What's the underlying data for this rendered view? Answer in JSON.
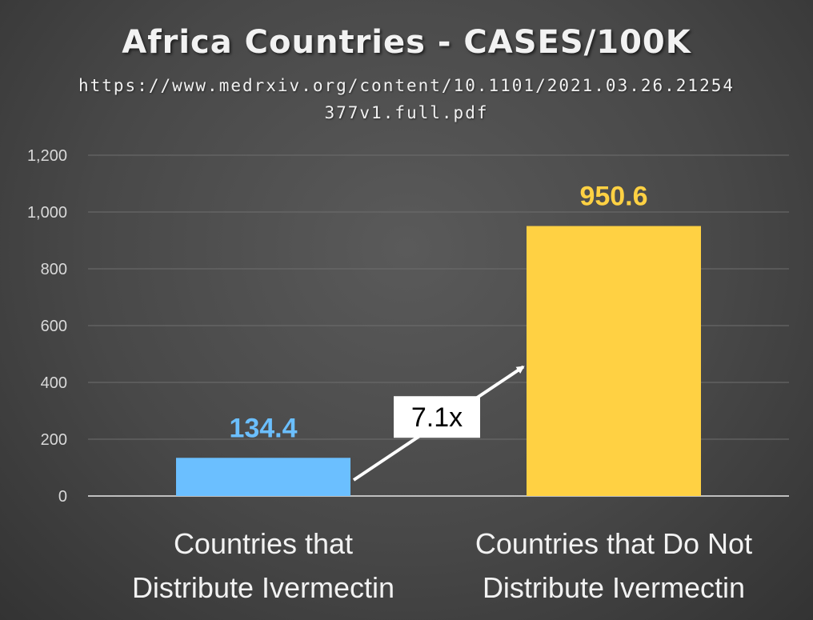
{
  "chart_data": {
    "type": "bar",
    "title": "Africa Countries - CASES/100K",
    "subtitle": "https://www.medrxiv.org/content/10.1101/2021.03.26.21254377v1.full.pdf",
    "categories": [
      "Countries that Distribute Ivermectin",
      "Countries that Do Not Distribute Ivermectin"
    ],
    "category_lines": [
      [
        "Countries that",
        "Distribute Ivermectin"
      ],
      [
        "Countries that Do Not",
        "Distribute Ivermectin"
      ]
    ],
    "values": [
      134.4,
      950.6
    ],
    "data_labels": [
      "134.4",
      "950.6"
    ],
    "bar_colors": [
      "#6bbfff",
      "#ffd143"
    ],
    "yticks": [
      0,
      200,
      400,
      600,
      800,
      1000,
      1200
    ],
    "ytick_labels": [
      "0",
      "200",
      "400",
      "600",
      "800",
      "1,000",
      "1,200"
    ],
    "ylim": [
      0,
      1200
    ],
    "grid": true,
    "legend": "none",
    "annotation": {
      "text": "7.1x",
      "type": "arrow",
      "from_category": 0,
      "to_category": 1
    },
    "xlabel": "",
    "ylabel": ""
  }
}
